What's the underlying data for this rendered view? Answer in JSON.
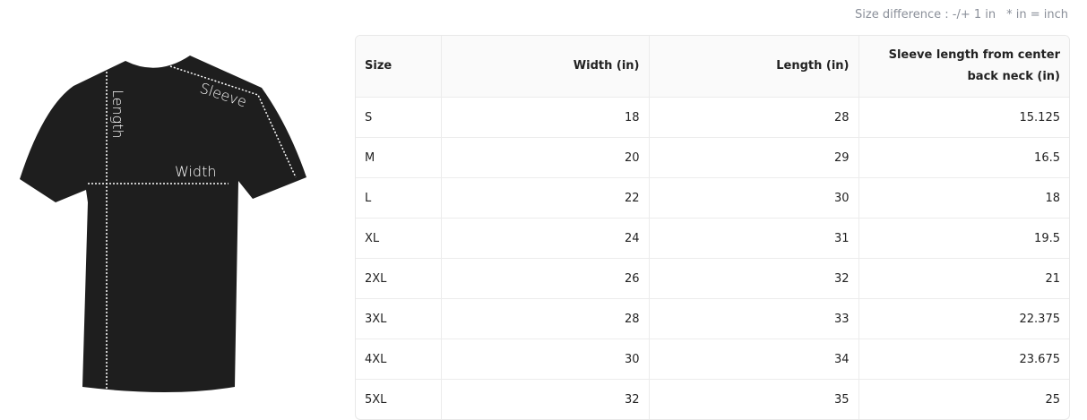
{
  "note": {
    "difference": "Size difference : -/+ 1 in",
    "unit": "* in = inch"
  },
  "image": {
    "labels": {
      "length": "Length",
      "width": "Width",
      "sleeve": "Sleeve"
    }
  },
  "table": {
    "headers": [
      "Size",
      "Width (in)",
      "Length (in)",
      "Sleeve length from center back neck (in)"
    ],
    "rows": [
      [
        "S",
        "18",
        "28",
        "15.125"
      ],
      [
        "M",
        "20",
        "29",
        "16.5"
      ],
      [
        "L",
        "22",
        "30",
        "18"
      ],
      [
        "XL",
        "24",
        "31",
        "19.5"
      ],
      [
        "2XL",
        "26",
        "32",
        "21"
      ],
      [
        "3XL",
        "28",
        "33",
        "22.375"
      ],
      [
        "4XL",
        "30",
        "34",
        "23.675"
      ],
      [
        "5XL",
        "32",
        "35",
        "25"
      ]
    ]
  }
}
